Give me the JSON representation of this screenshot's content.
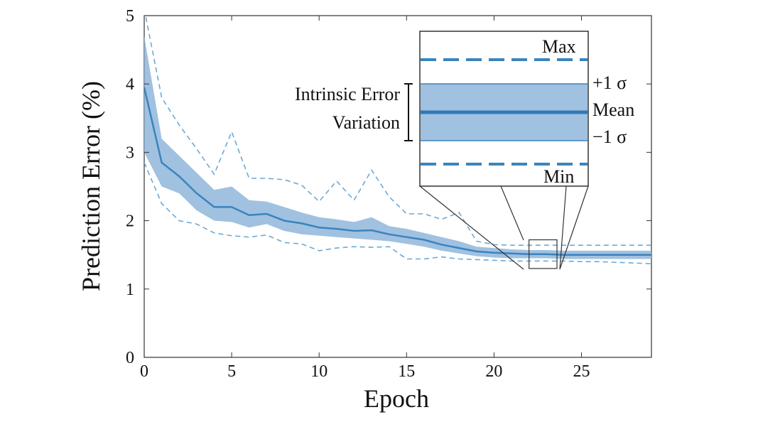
{
  "chart_data": {
    "type": "line",
    "xlabel": "Epoch",
    "ylabel": "Prediction Error (%)",
    "xlim": [
      0,
      29
    ],
    "ylim": [
      0,
      5
    ],
    "x_ticks": [
      "0",
      "5",
      "10",
      "15",
      "20",
      "25"
    ],
    "y_ticks": [
      "0",
      "1",
      "2",
      "3",
      "4",
      "5"
    ],
    "x": [
      0,
      1,
      2,
      3,
      4,
      5,
      6,
      7,
      8,
      9,
      10,
      11,
      12,
      13,
      14,
      15,
      16,
      17,
      18,
      19,
      20,
      21,
      22,
      23,
      24,
      25,
      26,
      27,
      28,
      29
    ],
    "series": [
      {
        "role": "mean",
        "values": [
          3.95,
          2.85,
          2.65,
          2.4,
          2.2,
          2.2,
          2.08,
          2.1,
          2.0,
          1.96,
          1.9,
          1.88,
          1.85,
          1.86,
          1.8,
          1.76,
          1.72,
          1.65,
          1.6,
          1.55,
          1.53,
          1.52,
          1.51,
          1.51,
          1.5,
          1.5,
          1.5,
          1.5,
          1.5,
          1.5
        ]
      },
      {
        "role": "+1 σ",
        "values": [
          4.7,
          3.2,
          2.95,
          2.7,
          2.45,
          2.5,
          2.3,
          2.28,
          2.2,
          2.12,
          2.05,
          2.02,
          1.98,
          2.05,
          1.92,
          1.88,
          1.82,
          1.76,
          1.7,
          1.62,
          1.6,
          1.58,
          1.57,
          1.57,
          1.56,
          1.56,
          1.56,
          1.56,
          1.56,
          1.56
        ]
      },
      {
        "role": "−1 σ",
        "values": [
          3.0,
          2.5,
          2.4,
          2.15,
          2.0,
          1.98,
          1.9,
          1.95,
          1.85,
          1.8,
          1.78,
          1.76,
          1.74,
          1.72,
          1.7,
          1.66,
          1.62,
          1.56,
          1.52,
          1.48,
          1.46,
          1.45,
          1.45,
          1.45,
          1.44,
          1.44,
          1.44,
          1.44,
          1.44,
          1.44
        ]
      },
      {
        "role": "Max",
        "values": [
          5.1,
          3.8,
          3.4,
          3.05,
          2.68,
          3.3,
          2.62,
          2.62,
          2.6,
          2.52,
          2.28,
          2.58,
          2.3,
          2.74,
          2.35,
          2.1,
          2.1,
          2.02,
          2.12,
          1.7,
          1.65,
          1.64,
          1.64,
          1.64,
          1.64,
          1.64,
          1.64,
          1.64,
          1.64,
          1.64
        ]
      },
      {
        "role": "Min",
        "values": [
          2.85,
          2.25,
          2.0,
          1.95,
          1.82,
          1.78,
          1.76,
          1.79,
          1.68,
          1.66,
          1.56,
          1.6,
          1.62,
          1.61,
          1.62,
          1.44,
          1.44,
          1.47,
          1.44,
          1.43,
          1.42,
          1.41,
          1.41,
          1.41,
          1.41,
          1.4,
          1.4,
          1.39,
          1.38,
          1.37
        ]
      }
    ],
    "colors": {
      "line": "#3a84bd",
      "band": "#8fb6db",
      "dashed": "#6aaad6",
      "axis": "#333333"
    },
    "inset": {
      "labels": {
        "max": "Max",
        "plus_sigma": "+1 σ",
        "mean": "Mean",
        "minus_sigma": "−1 σ",
        "min": "Min"
      },
      "bracket_label_line1": "Intrinsic Error",
      "bracket_label_line2": "Variation",
      "zoom_region": {
        "x": [
          22,
          23.6
        ],
        "y": [
          1.3,
          1.72
        ]
      }
    }
  }
}
